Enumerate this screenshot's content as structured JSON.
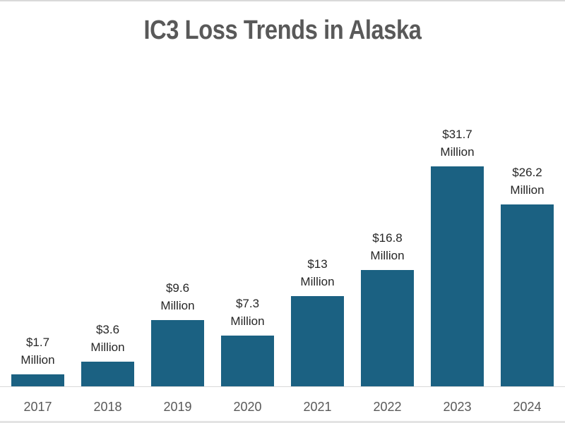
{
  "chart_data": {
    "type": "bar",
    "title": "IC3 Loss Trends in Alaska",
    "xlabel": "",
    "ylabel": "",
    "categories": [
      "2017",
      "2018",
      "2019",
      "2020",
      "2021",
      "2022",
      "2023",
      "2024"
    ],
    "values": [
      1.7,
      3.6,
      9.6,
      7.3,
      13,
      16.8,
      31.7,
      26.2
    ],
    "units": "Million USD",
    "data_labels": [
      {
        "line1": "$1.7",
        "line2": "Million"
      },
      {
        "line1": "$3.6",
        "line2": "Million"
      },
      {
        "line1": "$9.6",
        "line2": "Million"
      },
      {
        "line1": "$7.3",
        "line2": "Million"
      },
      {
        "line1": "$13",
        "line2": "Million"
      },
      {
        "line1": "$16.8",
        "line2": "Million"
      },
      {
        "line1": "$31.7",
        "line2": "Million"
      },
      {
        "line1": "$26.2",
        "line2": "Million"
      }
    ],
    "ylim": [
      0,
      32
    ],
    "grid": false,
    "legend": "none",
    "bar_color": "#1b6182"
  }
}
